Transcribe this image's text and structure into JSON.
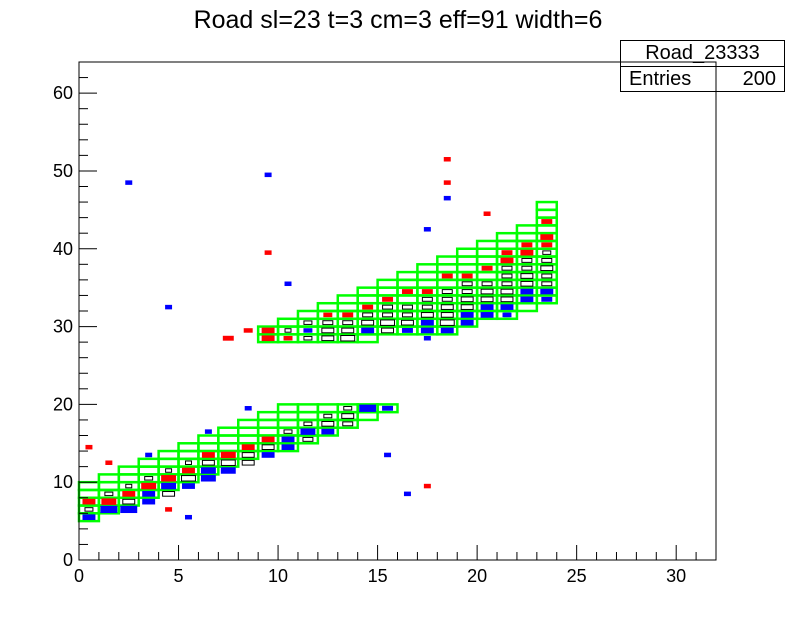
{
  "chart_data": {
    "type": "heatmap",
    "title": "Road sl=23 t=3 cm=3 eff=91 width=6",
    "xlabel": "",
    "ylabel": "",
    "xlim": [
      0,
      32
    ],
    "ylim": [
      0,
      64
    ],
    "xticks": [
      "0",
      "5",
      "10",
      "15",
      "20",
      "25",
      "30"
    ],
    "yticks": [
      "0",
      "10",
      "20",
      "30",
      "40",
      "50",
      "60"
    ],
    "stats": {
      "name": "Road_23333",
      "entries_label": "Entries",
      "entries_value": "200"
    },
    "colors": {
      "road_outline": "#00ff00",
      "hit_red": "#ff0000",
      "hit_blue": "#0000ff",
      "box": "#000000"
    },
    "road": [
      {
        "x": 0,
        "ymin": 5,
        "ymax": 10
      },
      {
        "x": 1,
        "ymin": 6,
        "ymax": 11
      },
      {
        "x": 2,
        "ymin": 7,
        "ymax": 12
      },
      {
        "x": 3,
        "ymin": 8,
        "ymax": 13
      },
      {
        "x": 4,
        "ymin": 9,
        "ymax": 14
      },
      {
        "x": 5,
        "ymin": 10,
        "ymax": 15
      },
      {
        "x": 6,
        "ymin": 11,
        "ymax": 16
      },
      {
        "x": 7,
        "ymin": 12,
        "ymax": 17
      },
      {
        "x": 8,
        "ymin": 13,
        "ymax": 18
      },
      {
        "x": 9,
        "ymin": 14,
        "ymax": 19
      },
      {
        "x": 10,
        "ymin": 14,
        "ymax": 20
      },
      {
        "x": 11,
        "ymin": 15,
        "ymax": 20
      },
      {
        "x": 12,
        "ymin": 16,
        "ymax": 20
      },
      {
        "x": 13,
        "ymin": 17,
        "ymax": 20
      },
      {
        "x": 14,
        "ymin": 18,
        "ymax": 20
      },
      {
        "x": 15,
        "ymin": 19,
        "ymax": 20
      },
      {
        "x": 9,
        "ymin": 28,
        "ymax": 30
      },
      {
        "x": 10,
        "ymin": 28,
        "ymax": 31
      },
      {
        "x": 11,
        "ymin": 28,
        "ymax": 32
      },
      {
        "x": 12,
        "ymin": 28,
        "ymax": 33
      },
      {
        "x": 13,
        "ymin": 28,
        "ymax": 34
      },
      {
        "x": 14,
        "ymin": 28,
        "ymax": 35
      },
      {
        "x": 15,
        "ymin": 29,
        "ymax": 36
      },
      {
        "x": 16,
        "ymin": 29,
        "ymax": 37
      },
      {
        "x": 17,
        "ymin": 29,
        "ymax": 38
      },
      {
        "x": 18,
        "ymin": 29,
        "ymax": 39
      },
      {
        "x": 19,
        "ymin": 30,
        "ymax": 40
      },
      {
        "x": 20,
        "ymin": 31,
        "ymax": 41
      },
      {
        "x": 21,
        "ymin": 31,
        "ymax": 42
      },
      {
        "x": 22,
        "ymin": 32,
        "ymax": 43
      },
      {
        "x": 23,
        "ymin": 33,
        "ymax": 46
      }
    ],
    "hits": [
      {
        "x": 0.5,
        "y": 5.5,
        "c": "blue",
        "s": 0.6
      },
      {
        "x": 0.5,
        "y": 6.5,
        "c": "box",
        "s": 0.4
      },
      {
        "x": 0.5,
        "y": 7.5,
        "c": "red",
        "s": 0.6
      },
      {
        "x": 1.5,
        "y": 6.5,
        "c": "blue",
        "s": 0.8
      },
      {
        "x": 1.5,
        "y": 7.5,
        "c": "red",
        "s": 0.7
      },
      {
        "x": 1.5,
        "y": 8.5,
        "c": "box",
        "s": 0.4
      },
      {
        "x": 2.5,
        "y": 6.5,
        "c": "blue",
        "s": 0.8
      },
      {
        "x": 2.5,
        "y": 7.5,
        "c": "box",
        "s": 0.6
      },
      {
        "x": 2.5,
        "y": 8.5,
        "c": "red",
        "s": 0.6
      },
      {
        "x": 2.5,
        "y": 9.5,
        "c": "box",
        "s": 0.3
      },
      {
        "x": 3.5,
        "y": 7.5,
        "c": "blue",
        "s": 0.6
      },
      {
        "x": 3.5,
        "y": 8.5,
        "c": "blue",
        "s": 0.6
      },
      {
        "x": 3.5,
        "y": 9.5,
        "c": "red",
        "s": 0.7
      },
      {
        "x": 3.5,
        "y": 10.5,
        "c": "box",
        "s": 0.4
      },
      {
        "x": 4.5,
        "y": 8.5,
        "c": "box",
        "s": 0.6
      },
      {
        "x": 4.5,
        "y": 9.5,
        "c": "blue",
        "s": 0.7
      },
      {
        "x": 4.5,
        "y": 10.5,
        "c": "red",
        "s": 0.7
      },
      {
        "x": 4.5,
        "y": 11.5,
        "c": "box",
        "s": 0.3
      },
      {
        "x": 5.5,
        "y": 9.5,
        "c": "blue",
        "s": 0.6
      },
      {
        "x": 5.5,
        "y": 10.5,
        "c": "box",
        "s": 0.7
      },
      {
        "x": 5.5,
        "y": 11.5,
        "c": "red",
        "s": 0.6
      },
      {
        "x": 5.5,
        "y": 12.5,
        "c": "box",
        "s": 0.3
      },
      {
        "x": 6.5,
        "y": 10.5,
        "c": "blue",
        "s": 0.7
      },
      {
        "x": 6.5,
        "y": 11.5,
        "c": "blue",
        "s": 0.7
      },
      {
        "x": 6.5,
        "y": 12.5,
        "c": "box",
        "s": 0.6
      },
      {
        "x": 6.5,
        "y": 13.5,
        "c": "red",
        "s": 0.6
      },
      {
        "x": 7.5,
        "y": 11.5,
        "c": "blue",
        "s": 0.7
      },
      {
        "x": 7.5,
        "y": 12.5,
        "c": "box",
        "s": 0.7
      },
      {
        "x": 7.5,
        "y": 13.5,
        "c": "red",
        "s": 0.7
      },
      {
        "x": 8.5,
        "y": 12.5,
        "c": "box",
        "s": 0.6
      },
      {
        "x": 8.5,
        "y": 13.5,
        "c": "box",
        "s": 0.6
      },
      {
        "x": 8.5,
        "y": 14.5,
        "c": "red",
        "s": 0.6
      },
      {
        "x": 9.5,
        "y": 13.5,
        "c": "blue",
        "s": 0.6
      },
      {
        "x": 9.5,
        "y": 14.5,
        "c": "box",
        "s": 0.6
      },
      {
        "x": 9.5,
        "y": 15.5,
        "c": "red",
        "s": 0.6
      },
      {
        "x": 10.5,
        "y": 14.5,
        "c": "blue",
        "s": 0.6
      },
      {
        "x": 10.5,
        "y": 15.5,
        "c": "blue",
        "s": 0.6
      },
      {
        "x": 10.5,
        "y": 16.5,
        "c": "box",
        "s": 0.4
      },
      {
        "x": 11.5,
        "y": 15.5,
        "c": "box",
        "s": 0.5
      },
      {
        "x": 11.5,
        "y": 16.5,
        "c": "blue",
        "s": 0.7
      },
      {
        "x": 11.5,
        "y": 17.5,
        "c": "box",
        "s": 0.4
      },
      {
        "x": 12.5,
        "y": 16.5,
        "c": "blue",
        "s": 0.6
      },
      {
        "x": 12.5,
        "y": 17.5,
        "c": "box",
        "s": 0.6
      },
      {
        "x": 12.5,
        "y": 18.5,
        "c": "box",
        "s": 0.4
      },
      {
        "x": 13.5,
        "y": 17.5,
        "c": "box",
        "s": 0.5
      },
      {
        "x": 13.5,
        "y": 18.5,
        "c": "box",
        "s": 0.6
      },
      {
        "x": 13.5,
        "y": 19.5,
        "c": "box",
        "s": 0.4
      },
      {
        "x": 14.5,
        "y": 19.5,
        "c": "blue",
        "s": 0.8
      },
      {
        "x": 15.5,
        "y": 19.5,
        "c": "blue",
        "s": 0.5
      },
      {
        "x": 9.5,
        "y": 28.5,
        "c": "red",
        "s": 0.6
      },
      {
        "x": 9.5,
        "y": 29.5,
        "c": "red",
        "s": 0.6
      },
      {
        "x": 10.5,
        "y": 28.5,
        "c": "red",
        "s": 0.4
      },
      {
        "x": 10.5,
        "y": 29.5,
        "c": "box",
        "s": 0.3
      },
      {
        "x": 11.5,
        "y": 28.5,
        "c": "box",
        "s": 0.4
      },
      {
        "x": 11.5,
        "y": 29.5,
        "c": "blue",
        "s": 0.4
      },
      {
        "x": 11.5,
        "y": 30.5,
        "c": "box",
        "s": 0.4
      },
      {
        "x": 12.5,
        "y": 28.5,
        "c": "box",
        "s": 0.6
      },
      {
        "x": 12.5,
        "y": 29.5,
        "c": "box",
        "s": 0.6
      },
      {
        "x": 12.5,
        "y": 30.5,
        "c": "box",
        "s": 0.5
      },
      {
        "x": 12.5,
        "y": 31.5,
        "c": "red",
        "s": 0.4
      },
      {
        "x": 13.5,
        "y": 28.5,
        "c": "box",
        "s": 0.7
      },
      {
        "x": 13.5,
        "y": 29.5,
        "c": "box",
        "s": 0.6
      },
      {
        "x": 13.5,
        "y": 30.5,
        "c": "box",
        "s": 0.5
      },
      {
        "x": 13.5,
        "y": 31.5,
        "c": "red",
        "s": 0.5
      },
      {
        "x": 14.5,
        "y": 29.5,
        "c": "blue",
        "s": 0.6
      },
      {
        "x": 14.5,
        "y": 30.5,
        "c": "box",
        "s": 0.6
      },
      {
        "x": 14.5,
        "y": 31.5,
        "c": "box",
        "s": 0.5
      },
      {
        "x": 14.5,
        "y": 32.5,
        "c": "red",
        "s": 0.5
      },
      {
        "x": 15.5,
        "y": 29.5,
        "c": "box",
        "s": 0.6
      },
      {
        "x": 15.5,
        "y": 30.5,
        "c": "box",
        "s": 0.7
      },
      {
        "x": 15.5,
        "y": 31.5,
        "c": "box",
        "s": 0.5
      },
      {
        "x": 15.5,
        "y": 32.5,
        "c": "box",
        "s": 0.5
      },
      {
        "x": 15.5,
        "y": 33.5,
        "c": "red",
        "s": 0.5
      },
      {
        "x": 16.5,
        "y": 29.5,
        "c": "blue",
        "s": 0.5
      },
      {
        "x": 16.5,
        "y": 30.5,
        "c": "box",
        "s": 0.6
      },
      {
        "x": 16.5,
        "y": 31.5,
        "c": "box",
        "s": 0.5
      },
      {
        "x": 16.5,
        "y": 32.5,
        "c": "box",
        "s": 0.5
      },
      {
        "x": 16.5,
        "y": 34.5,
        "c": "red",
        "s": 0.5
      },
      {
        "x": 17.5,
        "y": 29.5,
        "c": "blue",
        "s": 0.6
      },
      {
        "x": 17.5,
        "y": 30.5,
        "c": "blue",
        "s": 0.6
      },
      {
        "x": 17.5,
        "y": 31.5,
        "c": "box",
        "s": 0.6
      },
      {
        "x": 17.5,
        "y": 32.5,
        "c": "box",
        "s": 0.5
      },
      {
        "x": 17.5,
        "y": 33.5,
        "c": "box",
        "s": 0.5
      },
      {
        "x": 17.5,
        "y": 34.5,
        "c": "red",
        "s": 0.5
      },
      {
        "x": 18.5,
        "y": 29.5,
        "c": "blue",
        "s": 0.6
      },
      {
        "x": 18.5,
        "y": 30.5,
        "c": "box",
        "s": 0.7
      },
      {
        "x": 18.5,
        "y": 31.5,
        "c": "box",
        "s": 0.6
      },
      {
        "x": 18.5,
        "y": 32.5,
        "c": "box",
        "s": 0.6
      },
      {
        "x": 18.5,
        "y": 33.5,
        "c": "box",
        "s": 0.5
      },
      {
        "x": 18.5,
        "y": 34.5,
        "c": "box",
        "s": 0.5
      },
      {
        "x": 18.5,
        "y": 36.5,
        "c": "red",
        "s": 0.5
      },
      {
        "x": 19.5,
        "y": 30.5,
        "c": "blue",
        "s": 0.6
      },
      {
        "x": 19.5,
        "y": 31.5,
        "c": "blue",
        "s": 0.6
      },
      {
        "x": 19.5,
        "y": 32.5,
        "c": "box",
        "s": 0.6
      },
      {
        "x": 19.5,
        "y": 33.5,
        "c": "box",
        "s": 0.6
      },
      {
        "x": 19.5,
        "y": 34.5,
        "c": "box",
        "s": 0.5
      },
      {
        "x": 19.5,
        "y": 35.5,
        "c": "box",
        "s": 0.5
      },
      {
        "x": 19.5,
        "y": 36.5,
        "c": "red",
        "s": 0.5
      },
      {
        "x": 20.5,
        "y": 31.5,
        "c": "blue",
        "s": 0.6
      },
      {
        "x": 20.5,
        "y": 32.5,
        "c": "blue",
        "s": 0.6
      },
      {
        "x": 20.5,
        "y": 33.5,
        "c": "box",
        "s": 0.6
      },
      {
        "x": 20.5,
        "y": 34.5,
        "c": "box",
        "s": 0.6
      },
      {
        "x": 20.5,
        "y": 35.5,
        "c": "box",
        "s": 0.5
      },
      {
        "x": 20.5,
        "y": 37.5,
        "c": "red",
        "s": 0.5
      },
      {
        "x": 21.5,
        "y": 31.5,
        "c": "blue",
        "s": 0.4
      },
      {
        "x": 21.5,
        "y": 32.5,
        "c": "blue",
        "s": 0.6
      },
      {
        "x": 21.5,
        "y": 33.5,
        "c": "box",
        "s": 0.6
      },
      {
        "x": 21.5,
        "y": 34.5,
        "c": "box",
        "s": 0.6
      },
      {
        "x": 21.5,
        "y": 35.5,
        "c": "box",
        "s": 0.5
      },
      {
        "x": 21.5,
        "y": 36.5,
        "c": "box",
        "s": 0.5
      },
      {
        "x": 21.5,
        "y": 37.5,
        "c": "box",
        "s": 0.5
      },
      {
        "x": 21.5,
        "y": 38.5,
        "c": "red",
        "s": 0.6
      },
      {
        "x": 21.5,
        "y": 39.5,
        "c": "red",
        "s": 0.5
      },
      {
        "x": 22.5,
        "y": 33.5,
        "c": "blue",
        "s": 0.6
      },
      {
        "x": 22.5,
        "y": 34.5,
        "c": "blue",
        "s": 0.6
      },
      {
        "x": 22.5,
        "y": 35.5,
        "c": "box",
        "s": 0.6
      },
      {
        "x": 22.5,
        "y": 36.5,
        "c": "box",
        "s": 0.6
      },
      {
        "x": 22.5,
        "y": 37.5,
        "c": "box",
        "s": 0.5
      },
      {
        "x": 22.5,
        "y": 38.5,
        "c": "box",
        "s": 0.5
      },
      {
        "x": 22.5,
        "y": 39.5,
        "c": "red",
        "s": 0.6
      },
      {
        "x": 22.5,
        "y": 40.5,
        "c": "red",
        "s": 0.5
      },
      {
        "x": 23.5,
        "y": 33.5,
        "c": "blue",
        "s": 0.5
      },
      {
        "x": 23.5,
        "y": 34.5,
        "c": "blue",
        "s": 0.6
      },
      {
        "x": 23.5,
        "y": 35.5,
        "c": "box",
        "s": 0.5
      },
      {
        "x": 23.5,
        "y": 36.5,
        "c": "box",
        "s": 0.5
      },
      {
        "x": 23.5,
        "y": 37.5,
        "c": "box",
        "s": 0.6
      },
      {
        "x": 23.5,
        "y": 38.5,
        "c": "box",
        "s": 0.5
      },
      {
        "x": 23.5,
        "y": 39.5,
        "c": "box",
        "s": 0.4
      },
      {
        "x": 23.5,
        "y": 40.5,
        "c": "red",
        "s": 0.5
      },
      {
        "x": 23.5,
        "y": 41.5,
        "c": "red",
        "s": 0.6
      },
      {
        "x": 23.5,
        "y": 43.5,
        "c": "red",
        "s": 0.5
      },
      {
        "x": 0.5,
        "y": 14.5,
        "c": "red",
        "s": 0.3
      },
      {
        "x": 1.5,
        "y": 12.5,
        "c": "red",
        "s": 0.3
      },
      {
        "x": 3.5,
        "y": 13.5,
        "c": "blue",
        "s": 0.3
      },
      {
        "x": 4.5,
        "y": 6.5,
        "c": "red",
        "s": 0.3
      },
      {
        "x": 5.5,
        "y": 5.5,
        "c": "blue",
        "s": 0.3
      },
      {
        "x": 6.5,
        "y": 16.5,
        "c": "blue",
        "s": 0.3
      },
      {
        "x": 8.5,
        "y": 19.5,
        "c": "blue",
        "s": 0.3
      },
      {
        "x": 15.5,
        "y": 13.5,
        "c": "blue",
        "s": 0.3
      },
      {
        "x": 16.5,
        "y": 8.5,
        "c": "blue",
        "s": 0.3
      },
      {
        "x": 17.5,
        "y": 9.5,
        "c": "red",
        "s": 0.3
      },
      {
        "x": 2.5,
        "y": 48.5,
        "c": "blue",
        "s": 0.3
      },
      {
        "x": 4.5,
        "y": 32.5,
        "c": "blue",
        "s": 0.3
      },
      {
        "x": 7.5,
        "y": 28.5,
        "c": "red",
        "s": 0.5
      },
      {
        "x": 8.5,
        "y": 29.5,
        "c": "red",
        "s": 0.4
      },
      {
        "x": 9.5,
        "y": 49.5,
        "c": "blue",
        "s": 0.3
      },
      {
        "x": 9.5,
        "y": 39.5,
        "c": "red",
        "s": 0.3
      },
      {
        "x": 10.5,
        "y": 35.5,
        "c": "blue",
        "s": 0.3
      },
      {
        "x": 17.5,
        "y": 28.5,
        "c": "blue",
        "s": 0.3
      },
      {
        "x": 17.5,
        "y": 42.5,
        "c": "blue",
        "s": 0.3
      },
      {
        "x": 18.5,
        "y": 51.5,
        "c": "red",
        "s": 0.3
      },
      {
        "x": 18.5,
        "y": 48.5,
        "c": "red",
        "s": 0.3
      },
      {
        "x": 18.5,
        "y": 46.5,
        "c": "blue",
        "s": 0.3
      },
      {
        "x": 20.5,
        "y": 44.5,
        "c": "red",
        "s": 0.3
      },
      {
        "x": 21.5,
        "y": 31.5,
        "c": "blue",
        "s": 0.3
      }
    ]
  }
}
